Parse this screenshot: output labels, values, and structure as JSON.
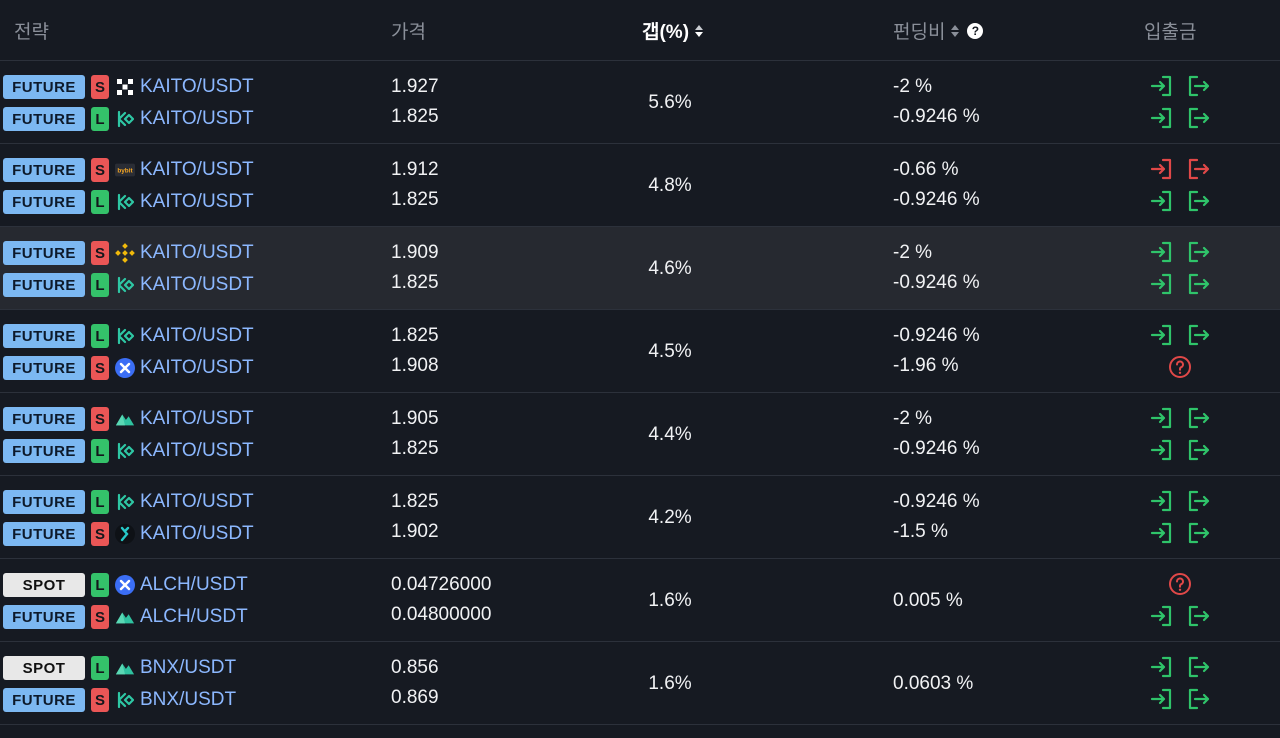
{
  "header": {
    "strategy": "전략",
    "price": "가격",
    "gap": "갭(%)",
    "funding": "펀딩비",
    "funding_help": "?",
    "deposit": "입출금"
  },
  "colors": {
    "future_tag": "#7cb8f2",
    "spot_tag": "#e8e8e8",
    "short": "#ea5656",
    "long": "#34c26a",
    "pair_text": "#8cb8ff",
    "action_ok": "#2fc46a",
    "action_alert": "#e04848"
  },
  "rows": [
    {
      "highlight": false,
      "gap": "5.6%",
      "legs": [
        {
          "type": "FUTURE",
          "side": "S",
          "exchange": "okx-icon",
          "pair": "KAITO/USDT",
          "price": "1.927",
          "funding": "-2 %",
          "actions": "ok"
        },
        {
          "type": "FUTURE",
          "side": "L",
          "exchange": "kucoin-icon",
          "pair": "KAITO/USDT",
          "price": "1.825",
          "funding": "-0.9246 %",
          "actions": "ok"
        }
      ]
    },
    {
      "highlight": false,
      "gap": "4.8%",
      "legs": [
        {
          "type": "FUTURE",
          "side": "S",
          "exchange": "bybit-icon",
          "pair": "KAITO/USDT",
          "price": "1.912",
          "funding": "-0.66 %",
          "actions": "alert"
        },
        {
          "type": "FUTURE",
          "side": "L",
          "exchange": "kucoin-icon",
          "pair": "KAITO/USDT",
          "price": "1.825",
          "funding": "-0.9246 %",
          "actions": "ok"
        }
      ]
    },
    {
      "highlight": true,
      "gap": "4.6%",
      "legs": [
        {
          "type": "FUTURE",
          "side": "S",
          "exchange": "binance-icon",
          "pair": "KAITO/USDT",
          "price": "1.909",
          "funding": "-2 %",
          "actions": "ok"
        },
        {
          "type": "FUTURE",
          "side": "L",
          "exchange": "kucoin-icon",
          "pair": "KAITO/USDT",
          "price": "1.825",
          "funding": "-0.9246 %",
          "actions": "ok"
        }
      ]
    },
    {
      "highlight": false,
      "gap": "4.5%",
      "legs": [
        {
          "type": "FUTURE",
          "side": "L",
          "exchange": "kucoin-icon",
          "pair": "KAITO/USDT",
          "price": "1.825",
          "funding": "-0.9246 %",
          "actions": "ok"
        },
        {
          "type": "FUTURE",
          "side": "S",
          "exchange": "cross-exchange-icon",
          "pair": "KAITO/USDT",
          "price": "1.908",
          "funding": "-1.96 %",
          "actions": "unknown"
        }
      ]
    },
    {
      "highlight": false,
      "gap": "4.4%",
      "legs": [
        {
          "type": "FUTURE",
          "side": "S",
          "exchange": "mountain-icon",
          "pair": "KAITO/USDT",
          "price": "1.905",
          "funding": "-2 %",
          "actions": "ok"
        },
        {
          "type": "FUTURE",
          "side": "L",
          "exchange": "kucoin-icon",
          "pair": "KAITO/USDT",
          "price": "1.825",
          "funding": "-0.9246 %",
          "actions": "ok"
        }
      ]
    },
    {
      "highlight": false,
      "gap": "4.2%",
      "legs": [
        {
          "type": "FUTURE",
          "side": "L",
          "exchange": "kucoin-icon",
          "pair": "KAITO/USDT",
          "price": "1.825",
          "funding": "-0.9246 %",
          "actions": "ok"
        },
        {
          "type": "FUTURE",
          "side": "S",
          "exchange": "bitget-icon",
          "pair": "KAITO/USDT",
          "price": "1.902",
          "funding": "-1.5 %",
          "actions": "ok"
        }
      ]
    },
    {
      "highlight": false,
      "gap": "1.6%",
      "funding_single": "0.005 %",
      "legs": [
        {
          "type": "SPOT",
          "side": "L",
          "exchange": "cross-exchange-icon",
          "pair": "ALCH/USDT",
          "price": "0.04726000",
          "actions": "unknown"
        },
        {
          "type": "FUTURE",
          "side": "S",
          "exchange": "mountain-icon",
          "pair": "ALCH/USDT",
          "price": "0.04800000",
          "actions": "ok"
        }
      ]
    },
    {
      "highlight": false,
      "gap": "1.6%",
      "funding_single": "0.0603 %",
      "legs": [
        {
          "type": "SPOT",
          "side": "L",
          "exchange": "mountain-icon",
          "pair": "BNX/USDT",
          "price": "0.856",
          "actions": "ok"
        },
        {
          "type": "FUTURE",
          "side": "S",
          "exchange": "kucoin-icon",
          "pair": "BNX/USDT",
          "price": "0.869",
          "actions": "ok"
        }
      ]
    }
  ]
}
